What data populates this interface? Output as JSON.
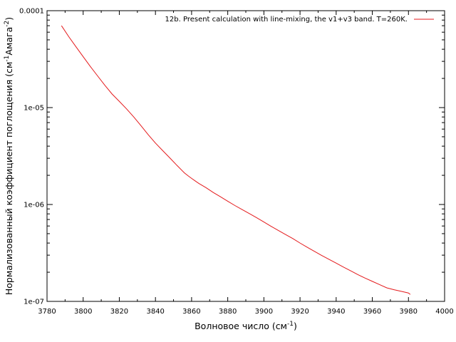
{
  "chart_data": {
    "type": "line",
    "title": "",
    "xlabel": "Волновое число (см",
    "xlabel_sup": "-1",
    "xlabel_end": ")",
    "ylabel": "Нормализованный коэффициент поглощения (см",
    "ylabel_sup1": "-1",
    "ylabel_mid": "Амага",
    "ylabel_sup2": "-2",
    "ylabel_end": ")",
    "xlim": [
      3780,
      4000
    ],
    "ylim": [
      1e-07,
      0.0001
    ],
    "yscale": "log",
    "grid": false,
    "legend_position": "top-right",
    "x_tick_labels": [
      "3780",
      "3800",
      "3820",
      "3840",
      "3860",
      "3880",
      "3900",
      "3920",
      "3940",
      "3960",
      "3980",
      "4000"
    ],
    "y_tick_labels": [
      "1e-07",
      "1e-06",
      "1e-05",
      "0.0001"
    ],
    "series": [
      {
        "name": "12b. Present calculation with line-mixing, the v1+v3 band. T=260K.",
        "color": "#e41a1c",
        "x": [
          3788,
          3792,
          3796,
          3800,
          3804,
          3808,
          3812,
          3816,
          3820,
          3824,
          3828,
          3832,
          3836,
          3840,
          3844,
          3848,
          3852,
          3856,
          3858,
          3860,
          3862,
          3864,
          3868,
          3872,
          3876,
          3880,
          3884,
          3888,
          3892,
          3896,
          3900,
          3904,
          3908,
          3912,
          3916,
          3920,
          3924,
          3928,
          3932,
          3936,
          3940,
          3944,
          3948,
          3952,
          3956,
          3960,
          3964,
          3968,
          3972,
          3976,
          3980,
          3981
        ],
        "y": [
          7e-05,
          5.4e-05,
          4.25e-05,
          3.35e-05,
          2.65e-05,
          2.12e-05,
          1.7e-05,
          1.38e-05,
          1.16e-05,
          9.7e-06,
          8e-06,
          6.5e-06,
          5.25e-06,
          4.3e-06,
          3.6e-06,
          3.02e-06,
          2.52e-06,
          2.12e-06,
          1.98e-06,
          1.86e-06,
          1.75e-06,
          1.65e-06,
          1.49e-06,
          1.33e-06,
          1.2e-06,
          1.08e-06,
          9.75e-07,
          8.85e-07,
          8.05e-07,
          7.3e-07,
          6.6e-07,
          5.95e-07,
          5.4e-07,
          4.9e-07,
          4.45e-07,
          4e-07,
          3.62e-07,
          3.28e-07,
          2.98e-07,
          2.72e-07,
          2.48e-07,
          2.26e-07,
          2.07e-07,
          1.89e-07,
          1.74e-07,
          1.61e-07,
          1.49e-07,
          1.38e-07,
          1.32e-07,
          1.27e-07,
          1.22e-07,
          1.18e-07
        ]
      }
    ]
  }
}
